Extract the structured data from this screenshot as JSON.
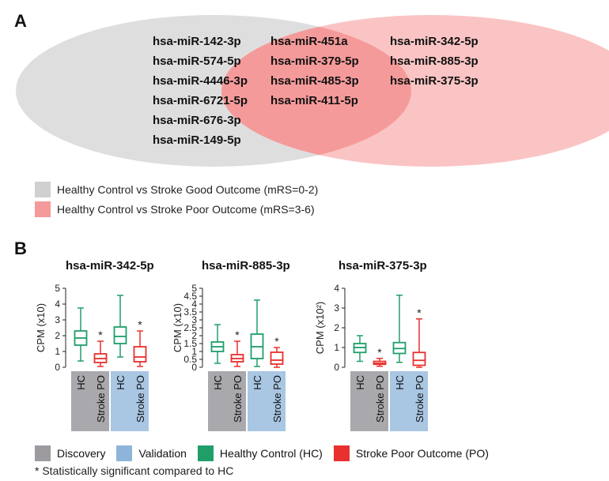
{
  "panel_a": {
    "label": "A",
    "venn": {
      "left_only": [
        "hsa-miR-142-3p",
        "hsa-miR-574-5p",
        "hsa-miR-4446-3p",
        "hsa-miR-6721-5p",
        "hsa-miR-676-3p",
        "hsa-miR-149-5p"
      ],
      "overlap": [
        "hsa-miR-451a",
        "hsa-miR-379-5p",
        "hsa-miR-485-3p",
        "hsa-miR-411-5p"
      ],
      "right_only": [
        "hsa-miR-342-5p",
        "hsa-miR-885-3p",
        "hsa-miR-375-3p"
      ]
    },
    "legend": [
      {
        "label": "Healthy Control vs Stroke Good Outcome (mRS=0-2)",
        "color": "#d0d0d0"
      },
      {
        "label": "Healthy Control vs Stroke Poor Outcome (mRS=3-6)",
        "color": "#f49a9a"
      }
    ]
  },
  "panel_b": {
    "label": "B",
    "colors": {
      "hc": "#1f9e6a",
      "po": "#e8302e",
      "discovery": "#a9a9ad",
      "validation": "#a9c6e3"
    },
    "bottom_legend": [
      {
        "label": "Discovery",
        "color": "#9d9aa0"
      },
      {
        "label": "Validation",
        "color": "#8fb4da"
      },
      {
        "label": "Healthy Control (HC)",
        "color": "#1f9e6a"
      },
      {
        "label": "Stroke Poor Outcome (PO)",
        "color": "#e8302e"
      }
    ],
    "footnote": "* Statistically significant compared to HC"
  },
  "chart_data": [
    {
      "type": "boxplot",
      "title": "hsa-miR-342-5p",
      "ylabel": "CPM (x10)",
      "ylim": [
        0,
        5
      ],
      "yticks": [
        "0",
        "1",
        "2",
        "3",
        "4",
        "5"
      ],
      "categories": [
        "HC",
        "Stroke PO",
        "HC",
        "Stroke PO"
      ],
      "groups": [
        "Discovery",
        "Validation"
      ],
      "boxes": [
        {
          "group": "Discovery",
          "category": "HC",
          "min": 0.4,
          "q1": 1.4,
          "median": 1.85,
          "q3": 2.3,
          "max": 3.75,
          "sig": false
        },
        {
          "group": "Discovery",
          "category": "Stroke PO",
          "min": 0.05,
          "q1": 0.3,
          "median": 0.55,
          "q3": 0.85,
          "max": 1.65,
          "sig": true
        },
        {
          "group": "Validation",
          "category": "HC",
          "min": 0.65,
          "q1": 1.5,
          "median": 1.95,
          "q3": 2.55,
          "max": 4.55,
          "sig": false
        },
        {
          "group": "Validation",
          "category": "Stroke PO",
          "min": 0.05,
          "q1": 0.35,
          "median": 0.65,
          "q3": 1.3,
          "max": 2.3,
          "sig": true
        }
      ]
    },
    {
      "type": "boxplot",
      "title": "hsa-miR-885-3p",
      "ylabel": "CPM (x10)",
      "ylim": [
        0,
        5
      ],
      "yticks": [
        "0",
        "0.5",
        "1",
        "1.5",
        "2",
        "2.5",
        "3",
        "3.5",
        "4",
        "4.5",
        "5"
      ],
      "categories": [
        "HC",
        "Stroke PO",
        "HC",
        "Stroke PO"
      ],
      "groups": [
        "Discovery",
        "Validation"
      ],
      "boxes": [
        {
          "group": "Discovery",
          "category": "HC",
          "min": 0.25,
          "q1": 1.0,
          "median": 1.3,
          "q3": 1.6,
          "max": 2.7,
          "sig": false
        },
        {
          "group": "Discovery",
          "category": "Stroke PO",
          "min": 0.05,
          "q1": 0.35,
          "median": 0.55,
          "q3": 0.8,
          "max": 1.65,
          "sig": true
        },
        {
          "group": "Validation",
          "category": "HC",
          "min": 0.05,
          "q1": 0.55,
          "median": 1.3,
          "q3": 2.1,
          "max": 4.25,
          "sig": false
        },
        {
          "group": "Validation",
          "category": "Stroke PO",
          "min": 0.0,
          "q1": 0.2,
          "median": 0.45,
          "q3": 0.95,
          "max": 1.25,
          "sig": true
        }
      ]
    },
    {
      "type": "boxplot",
      "title": "hsa-miR-375-3p",
      "ylabel": "CPM (x10²)",
      "ylim": [
        0,
        4
      ],
      "yticks": [
        "0",
        "1",
        "2",
        "3",
        "4"
      ],
      "categories": [
        "HC",
        "Stroke PO",
        "HC",
        "Stroke PO"
      ],
      "groups": [
        "Discovery",
        "Validation"
      ],
      "boxes": [
        {
          "group": "Discovery",
          "category": "HC",
          "min": 0.3,
          "q1": 0.75,
          "median": 1.0,
          "q3": 1.2,
          "max": 1.6,
          "sig": false
        },
        {
          "group": "Discovery",
          "category": "Stroke PO",
          "min": 0.05,
          "q1": 0.15,
          "median": 0.2,
          "q3": 0.3,
          "max": 0.45,
          "sig": true
        },
        {
          "group": "Validation",
          "category": "HC",
          "min": 0.25,
          "q1": 0.7,
          "median": 0.95,
          "q3": 1.25,
          "max": 3.65,
          "sig": false
        },
        {
          "group": "Validation",
          "category": "Stroke PO",
          "min": 0.0,
          "q1": 0.1,
          "median": 0.35,
          "q3": 0.75,
          "max": 2.45,
          "sig": true
        }
      ]
    }
  ]
}
